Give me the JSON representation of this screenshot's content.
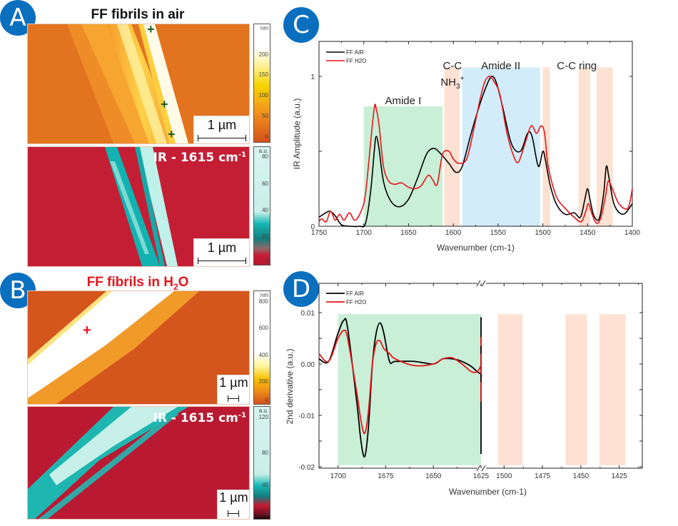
{
  "panels": {
    "A": {
      "letter": "A",
      "title": "FF fibrils in air",
      "height_colorbar": {
        "unit": "nm",
        "ticks": [
          "200",
          "150",
          "100",
          "50",
          "0"
        ]
      },
      "ir_colorbar": {
        "unit": "a.u.",
        "ticks": [
          "80",
          "60",
          "40",
          "20",
          "0"
        ]
      },
      "ir_label": "IR - 1615 cm",
      "ir_label_sup": "-1",
      "scale_bar": "1 µm",
      "markers": "+ + +"
    },
    "B": {
      "letter": "B",
      "title": "FF fibrils in H",
      "title_sub": "2",
      "title_end": "O",
      "height_colorbar": {
        "unit": "nm",
        "ticks": [
          "800",
          "600",
          "400",
          "200",
          "0"
        ]
      },
      "ir_colorbar": {
        "unit": "a.u.",
        "ticks": [
          "120",
          "80",
          "40",
          "0"
        ]
      },
      "ir_label": "IR - 1615 cm",
      "ir_label_sup": "-1",
      "scale_bar": "1 µm",
      "marker": "+"
    },
    "C": {
      "letter": "C"
    },
    "D": {
      "letter": "D"
    }
  },
  "colors": {
    "air": "#000000",
    "h2o": "#e8141b",
    "amide1_band": "#c9efd6",
    "amide2_band": "#d3ecfa",
    "orange_band": "#fde1d2",
    "badge": "#0b6fbf"
  },
  "chart_data": [
    {
      "id": "C",
      "type": "line",
      "title": "",
      "xlabel": "Wavenumber (cm-1)",
      "ylabel": "IR Amplitude (a.u.)",
      "xlim": [
        1750,
        1400
      ],
      "ylim": [
        0,
        1.1
      ],
      "x_ticks": [
        "1750",
        "1700",
        "1650",
        "1600",
        "1550",
        "1500",
        "1450",
        "1400"
      ],
      "y_ticks": [
        "0",
        "1"
      ],
      "legend": {
        "position": "top-left",
        "entries": [
          "FF AIR",
          "FF H2O"
        ]
      },
      "bands": [
        {
          "label": "Amide I",
          "from": 1700,
          "to": 1612,
          "color": "green"
        },
        {
          "label": "C-C NH3+",
          "from": 1610,
          "to": 1593,
          "color": "orange"
        },
        {
          "label": "Amide II",
          "from": 1590,
          "to": 1503,
          "color": "blue"
        },
        {
          "label": "C-C ring",
          "from": 1500,
          "to": 1492,
          "color": "orange"
        },
        {
          "label": "",
          "from": 1460,
          "to": 1447,
          "color": "orange"
        },
        {
          "label": "",
          "from": 1440,
          "to": 1422,
          "color": "orange"
        }
      ],
      "annotations": [
        "Amide I",
        "C-C",
        "NH3+",
        "Amide II",
        "C-C ring"
      ],
      "series": [
        {
          "name": "FF AIR",
          "x": [
            1750,
            1745,
            1738,
            1732,
            1725,
            1715,
            1705,
            1698,
            1692,
            1688,
            1686,
            1683,
            1678,
            1670,
            1660,
            1650,
            1640,
            1630,
            1622,
            1615,
            1605,
            1597,
            1590,
            1580,
            1570,
            1562,
            1557,
            1552,
            1545,
            1535,
            1525,
            1517,
            1512,
            1505,
            1500,
            1497,
            1492,
            1485,
            1475,
            1465,
            1458,
            1453,
            1450,
            1447,
            1443,
            1437,
            1432,
            1429,
            1426,
            1420,
            1410,
            1400
          ],
          "y": [
            0.06,
            0.08,
            0.1,
            0.07,
            0.01,
            0.0,
            0.0,
            0.02,
            0.25,
            0.52,
            0.6,
            0.52,
            0.3,
            0.17,
            0.13,
            0.18,
            0.32,
            0.48,
            0.52,
            0.49,
            0.42,
            0.36,
            0.4,
            0.62,
            0.82,
            0.95,
            1.0,
            0.96,
            0.8,
            0.55,
            0.5,
            0.62,
            0.6,
            0.4,
            0.5,
            0.44,
            0.28,
            0.15,
            0.08,
            0.09,
            0.06,
            0.18,
            0.25,
            0.17,
            0.07,
            0.05,
            0.22,
            0.4,
            0.32,
            0.14,
            0.08,
            0.15
          ]
        },
        {
          "name": "FF H2O",
          "x": [
            1750,
            1747,
            1742,
            1737,
            1732,
            1727,
            1722,
            1716,
            1710,
            1703,
            1698,
            1692,
            1688,
            1686,
            1683,
            1678,
            1672,
            1665,
            1658,
            1650,
            1643,
            1636,
            1628,
            1623,
            1618,
            1612,
            1605,
            1600,
            1594,
            1585,
            1577,
            1570,
            1565,
            1560,
            1555,
            1548,
            1540,
            1532,
            1527,
            1520,
            1513,
            1507,
            1502,
            1498,
            1494,
            1485,
            1475,
            1465,
            1457,
            1452,
            1449,
            1445,
            1440,
            1435,
            1430,
            1427,
            1423,
            1415,
            1405,
            1400
          ],
          "y": [
            0.03,
            0.05,
            0.03,
            0.1,
            0.04,
            0.08,
            0.04,
            0.09,
            0.04,
            0.1,
            0.22,
            0.58,
            0.8,
            0.78,
            0.68,
            0.4,
            0.3,
            0.28,
            0.29,
            0.26,
            0.25,
            0.27,
            0.34,
            0.31,
            0.28,
            0.48,
            0.5,
            0.45,
            0.42,
            0.45,
            0.65,
            0.85,
            0.96,
            1.0,
            0.97,
            0.88,
            0.62,
            0.46,
            0.43,
            0.55,
            0.67,
            0.62,
            0.67,
            0.62,
            0.4,
            0.2,
            0.12,
            0.06,
            0.03,
            0.1,
            0.15,
            0.08,
            0.02,
            0.06,
            0.2,
            0.3,
            0.26,
            0.15,
            0.12,
            0.25
          ]
        }
      ]
    },
    {
      "id": "D",
      "type": "line",
      "title": "",
      "xlabel": "Wavenumber (cm-1)",
      "ylabel": "2nd derivative (a.u.)",
      "xlim": [
        1710,
        1410
      ],
      "axis_break": {
        "from": 1625,
        "to": 1510
      },
      "ylim": [
        -0.02,
        0.011
      ],
      "x_ticks": [
        "1700",
        "1675",
        "1650",
        "1625",
        "1500",
        "1475",
        "1450",
        "1425"
      ],
      "y_ticks": [
        "0.01",
        "0.00",
        "-0.01",
        "-0.02"
      ],
      "legend": {
        "position": "top-left",
        "entries": [
          "FF AIR",
          "FF H2O"
        ]
      },
      "bands": [
        {
          "from": 1700,
          "to": 1625,
          "color": "green"
        },
        {
          "from": 1504,
          "to": 1488,
          "color": "orange"
        },
        {
          "from": 1460,
          "to": 1446,
          "color": "orange"
        },
        {
          "from": 1438,
          "to": 1421,
          "color": "orange"
        }
      ],
      "series": [
        {
          "name": "FF AIR",
          "x": [
            1710,
            1705,
            1700,
            1697,
            1695,
            1690,
            1688,
            1686,
            1684,
            1682,
            1680,
            1678,
            1676,
            1673,
            1670,
            1660,
            1650,
            1645,
            1640,
            1635,
            1630,
            1627,
            1625,
            1620,
            1515,
            1512,
            1508,
            1505,
            1502,
            1499,
            1496,
            1493,
            1491,
            1488,
            1485,
            1482,
            1480,
            1477,
            1474,
            1472,
            1469,
            1466,
            1463,
            1460,
            1458,
            1456,
            1454,
            1452,
            1450,
            1448,
            1445,
            1442,
            1440,
            1438,
            1435,
            1432,
            1430,
            1428,
            1426,
            1424,
            1422,
            1420,
            1415,
            1410
          ],
          "y": [
            0.001,
            0.0005,
            0.006,
            0.0085,
            0.007,
            -0.008,
            -0.015,
            -0.018,
            -0.012,
            0.0,
            0.006,
            0.008,
            0.006,
            0.0005,
            0.0005,
            0.0005,
            0.0,
            0.001,
            0.001,
            0.0005,
            -0.0005,
            -0.0015,
            -0.002,
            -0.0025,
            -0.002,
            -0.003,
            -0.0035,
            0.002,
            0.008,
            0.004,
            -0.006,
            -0.012,
            -0.006,
            0.003,
            0.007,
            0.002,
            0.0005,
            0.001,
            0.0015,
            0.0,
            -0.0015,
            0.002,
            0.005,
            0.001,
            -0.006,
            -0.0105,
            -0.007,
            0.003,
            0.005,
            0.005,
            0.009,
            0.003,
            -0.01,
            -0.0175,
            -0.01,
            0.003,
            0.008,
            0.005,
            0.0005,
            0.0005,
            0.001,
            0.0,
            0.001,
            0.001
          ]
        },
        {
          "name": "FF H2O",
          "x": [
            1710,
            1705,
            1700,
            1697,
            1695,
            1690,
            1688,
            1686,
            1684,
            1682,
            1680,
            1678,
            1676,
            1673,
            1670,
            1660,
            1650,
            1645,
            1640,
            1635,
            1630,
            1627,
            1625,
            1620,
            1515,
            1512,
            1508,
            1505,
            1502,
            1499,
            1496,
            1493,
            1491,
            1488,
            1485,
            1482,
            1480,
            1477,
            1474,
            1472,
            1469,
            1466,
            1463,
            1460,
            1458,
            1456,
            1454,
            1452,
            1450,
            1448,
            1445,
            1442,
            1440,
            1438,
            1435,
            1432,
            1430,
            1428,
            1426,
            1424,
            1422,
            1420,
            1415,
            1410
          ],
          "y": [
            0.002,
            0.0005,
            0.005,
            0.0065,
            0.005,
            -0.006,
            -0.011,
            -0.0135,
            -0.009,
            0.0,
            0.004,
            0.0045,
            0.003,
            0.002,
            0.001,
            -0.0003,
            0.0,
            0.001,
            0.0012,
            0.0,
            -0.0015,
            -0.0015,
            -0.0003,
            0.0003,
            -0.001,
            -0.0035,
            -0.003,
            0.0005,
            0.0015,
            -0.003,
            -0.006,
            -0.005,
            0.0005,
            0.0025,
            0.002,
            0.0013,
            0.001,
            0.0008,
            0.0003,
            -0.0002,
            0.001,
            0.0028,
            0.002,
            -0.002,
            -0.005,
            -0.0045,
            0.0,
            0.004,
            0.005,
            0.005,
            0.0035,
            -0.002,
            -0.0065,
            -0.007,
            -0.004,
            0.0005,
            0.002,
            0.0015,
            0.0007,
            0.0008,
            0.0015,
            0.001,
            0.002,
            0.002
          ]
        }
      ]
    }
  ]
}
